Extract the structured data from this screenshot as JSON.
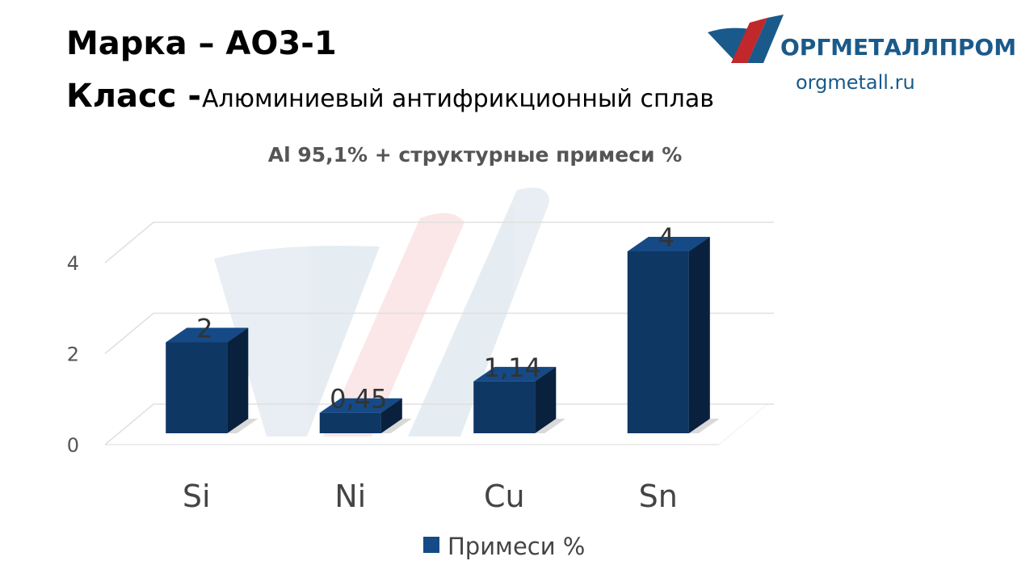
{
  "header": {
    "brand_line": "Марка – АО3-1",
    "class_label": "Класс -",
    "class_value": "Алюминиевый антифрикционный сплав"
  },
  "logo": {
    "name": "ОРГМЕТАЛЛПРОМ",
    "site": "orgmetall.ru"
  },
  "chart_data": {
    "type": "bar",
    "title": "Al 95,1% + структурные примеси %",
    "categories": [
      "Si",
      "Ni",
      "Cu",
      "Sn"
    ],
    "series": [
      {
        "name": "Примеси %",
        "color": "#154a86",
        "values": [
          2,
          0.45,
          1.14,
          4
        ],
        "value_labels": [
          "2",
          "0,45",
          "1,14",
          "4"
        ]
      }
    ],
    "ylim": [
      0,
      4
    ],
    "yticks": [
      0,
      2,
      4
    ],
    "grid": true
  }
}
